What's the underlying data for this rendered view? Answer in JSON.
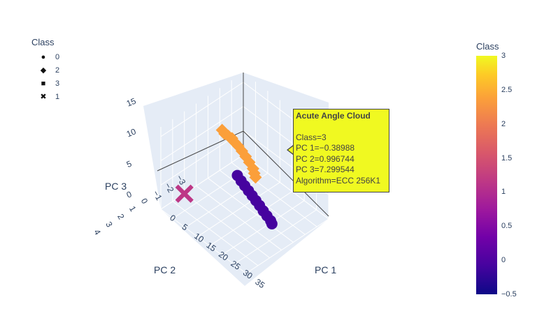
{
  "chart_data": {
    "type": "scatter",
    "projection": "3d",
    "axes": {
      "x": {
        "label": "PC 1",
        "ticks": [
          "0",
          "5",
          "10",
          "15",
          "20",
          "25",
          "30",
          "35"
        ],
        "range": [
          0,
          35
        ]
      },
      "y": {
        "label": "PC 2",
        "ticks": [
          "−3",
          "−2",
          "−1",
          "0",
          "1",
          "2",
          "3",
          "4"
        ],
        "range": [
          -3,
          4
        ]
      },
      "z": {
        "label": "PC 3",
        "ticks": [
          "0",
          "5",
          "10",
          "15"
        ],
        "range": [
          0,
          17
        ]
      }
    },
    "grid": true,
    "legend": {
      "title": "Class",
      "placement": "top-left",
      "items": [
        {
          "label": "0",
          "symbol": "circle"
        },
        {
          "label": "2",
          "symbol": "diamond"
        },
        {
          "label": "3",
          "symbol": "square"
        },
        {
          "label": "1",
          "symbol": "x"
        }
      ]
    },
    "colorbar": {
      "title": "Class",
      "range": [
        -0.5,
        3
      ],
      "ticks": [
        "3",
        "2.5",
        "2",
        "1.5",
        "1",
        "0.5",
        "0",
        "−0.5"
      ],
      "colorscale": [
        "#0d0887",
        "#46039f",
        "#7201a8",
        "#9c179e",
        "#bd3786",
        "#d8576b",
        "#ed7953",
        "#fb9f3a",
        "#fdca26",
        "#f0f921"
      ]
    },
    "series": [
      {
        "name": "2",
        "symbol": "diamond",
        "color": "#fb9f3a",
        "points": [
          [
            0,
            -1.2,
            8.0
          ],
          [
            2,
            -1.0,
            8.3
          ],
          [
            4,
            -0.9,
            8.8
          ],
          [
            6,
            -0.8,
            9.2
          ],
          [
            8,
            -0.6,
            9.5
          ],
          [
            10,
            -0.5,
            9.6
          ],
          [
            12,
            -0.4,
            9.5
          ],
          [
            14,
            -0.3,
            9.3
          ],
          [
            16,
            -0.2,
            9.0
          ],
          [
            18,
            -0.1,
            8.6
          ],
          [
            19,
            0.0,
            8.2
          ],
          [
            20,
            0.1,
            7.9
          ]
        ]
      },
      {
        "name": "0",
        "symbol": "circle",
        "color": "#46039f",
        "points": [
          [
            14,
            0.4,
            6.5
          ],
          [
            16,
            0.5,
            6.3
          ],
          [
            18,
            0.6,
            6.2
          ],
          [
            20,
            0.7,
            6.1
          ],
          [
            22,
            0.8,
            6.0
          ],
          [
            24,
            0.9,
            5.9
          ],
          [
            26,
            1.0,
            5.8
          ],
          [
            28,
            1.1,
            5.6
          ],
          [
            30,
            1.2,
            5.5
          ],
          [
            32,
            1.3,
            5.4
          ],
          [
            33,
            1.4,
            5.3
          ]
        ]
      },
      {
        "name": "1",
        "symbol": "x",
        "color": "#bd3786",
        "points": [
          [
            0,
            2.0,
            0
          ]
        ]
      }
    ],
    "tooltip": {
      "title": "Acute Angle Cloud",
      "lines": [
        "Class=3",
        "PC 1=−0.38988",
        "PC 2=0.996744",
        "PC 3=7.299544",
        "Algorithm=ECC 256K1"
      ]
    }
  }
}
